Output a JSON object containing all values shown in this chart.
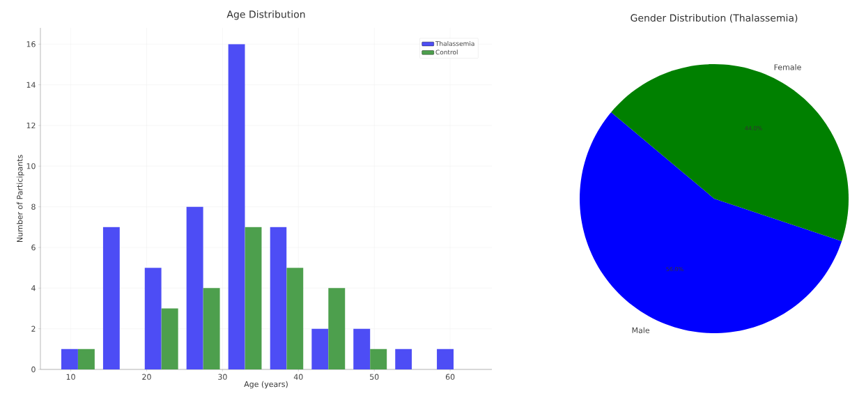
{
  "chart_data": [
    {
      "type": "histogram",
      "title": "Age Distribution",
      "xlabel": "Age (years)",
      "ylabel": "Number of Participants",
      "bins": [
        8.2,
        13.7,
        19.2,
        24.7,
        30.2,
        35.7,
        41.2,
        46.7,
        52.2,
        57.7,
        63.2
      ],
      "series": [
        {
          "name": "Thalassemia",
          "color": "#4d4df5",
          "values": [
            1,
            7,
            5,
            8,
            16,
            7,
            2,
            2,
            1,
            1
          ]
        },
        {
          "name": "Control",
          "color": "#4d9f4d",
          "values": [
            1,
            0,
            3,
            4,
            7,
            5,
            4,
            1,
            0,
            0
          ]
        }
      ],
      "xlim": [
        6,
        65.5
      ],
      "ylim": [
        0,
        16.8
      ],
      "xticks": [
        10,
        20,
        30,
        40,
        50,
        60
      ],
      "yticks": [
        0,
        2,
        4,
        6,
        8,
        10,
        12,
        14,
        16
      ],
      "grid": true,
      "legend": "top right"
    },
    {
      "type": "pie",
      "title": "Gender Distribution (Thalassemia)",
      "categories": [
        "Male",
        "Female"
      ],
      "values": [
        56,
        44
      ],
      "colors": [
        "#0000ff",
        "#008000"
      ],
      "value_labels": [
        "56.0%",
        "44.0%"
      ]
    }
  ]
}
